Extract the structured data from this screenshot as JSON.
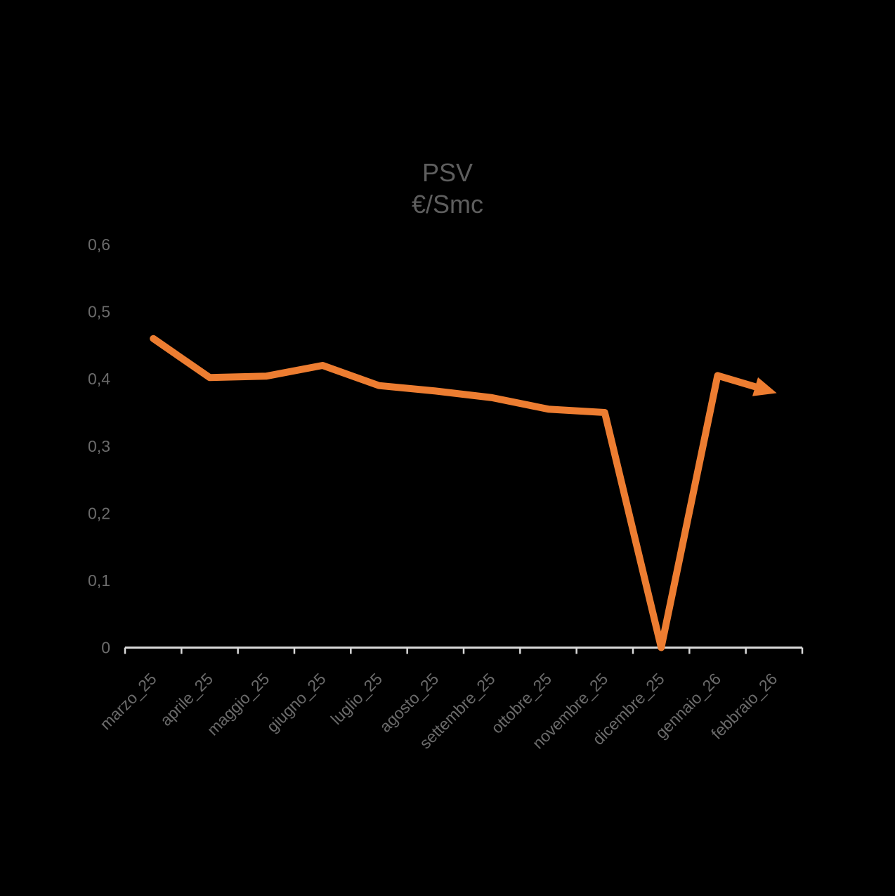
{
  "chart_data": {
    "type": "line",
    "title": "PSV",
    "subtitle": "€/Smc",
    "categories": [
      "marzo_25",
      "aprile_25",
      "maggio_25",
      "giugno_25",
      "luglio_25",
      "agosto_25",
      "settembre_25",
      "ottobre_25",
      "novembre_25",
      "dicembre_25",
      "gennaio_26",
      "febbraio_26"
    ],
    "series": [
      {
        "name": "PSV",
        "values": [
          0.46,
          0.402,
          0.404,
          0.42,
          0.39,
          0.382,
          0.372,
          0.355,
          0.35,
          0,
          0.405,
          0.38
        ],
        "end_arrow": true
      }
    ],
    "ylim": [
      0,
      0.6
    ],
    "ytick_labels": [
      "0",
      "0,1",
      "0,2",
      "0,3",
      "0,4",
      "0,5",
      "0,6"
    ],
    "decimal_separator": ",",
    "grid": false,
    "legend": "none",
    "x_label_rotation_deg": 45
  },
  "colors": {
    "background": "#000000",
    "line": "#ED7D31",
    "axis_line": "#D9D9D9",
    "title_text": "#5E5E5E",
    "axis_text": "#6B6B6B"
  }
}
